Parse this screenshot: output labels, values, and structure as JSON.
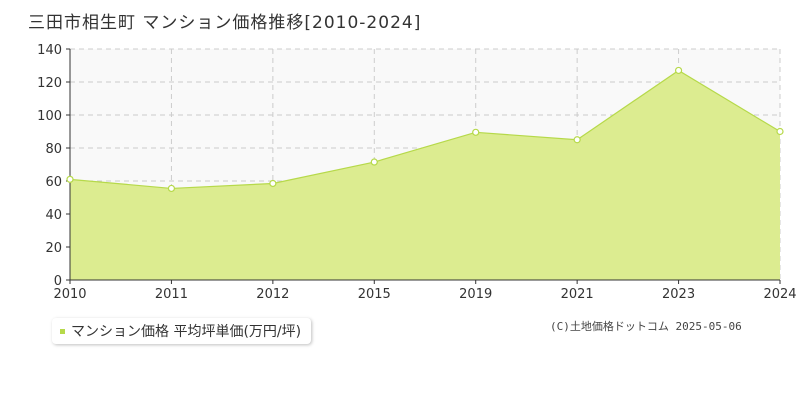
{
  "title": "三田市相生町 マンション価格推移[2010-2024]",
  "legend": {
    "label": "マンション価格 平均坪単価(万円/坪)"
  },
  "credit": "(C)土地価格ドットコム 2025-05-06",
  "colors": {
    "area": "#dcec90",
    "line": "#b6d94a",
    "grid": "#cccccc",
    "plot_bg": "#f9f9f9"
  },
  "chart_data": {
    "type": "area",
    "categories": [
      "2010",
      "2011",
      "2012",
      "2015",
      "2019",
      "2021",
      "2023",
      "2024"
    ],
    "series": [
      {
        "name": "マンション価格 平均坪単価(万円/坪)",
        "values": [
          61,
          55.5,
          58.5,
          71.5,
          89.5,
          85,
          127,
          90
        ]
      }
    ],
    "ylim": [
      0,
      140
    ],
    "yticks": [
      0,
      20,
      40,
      60,
      80,
      100,
      120,
      140
    ],
    "grid": true,
    "legend_position": "bottom-left"
  }
}
